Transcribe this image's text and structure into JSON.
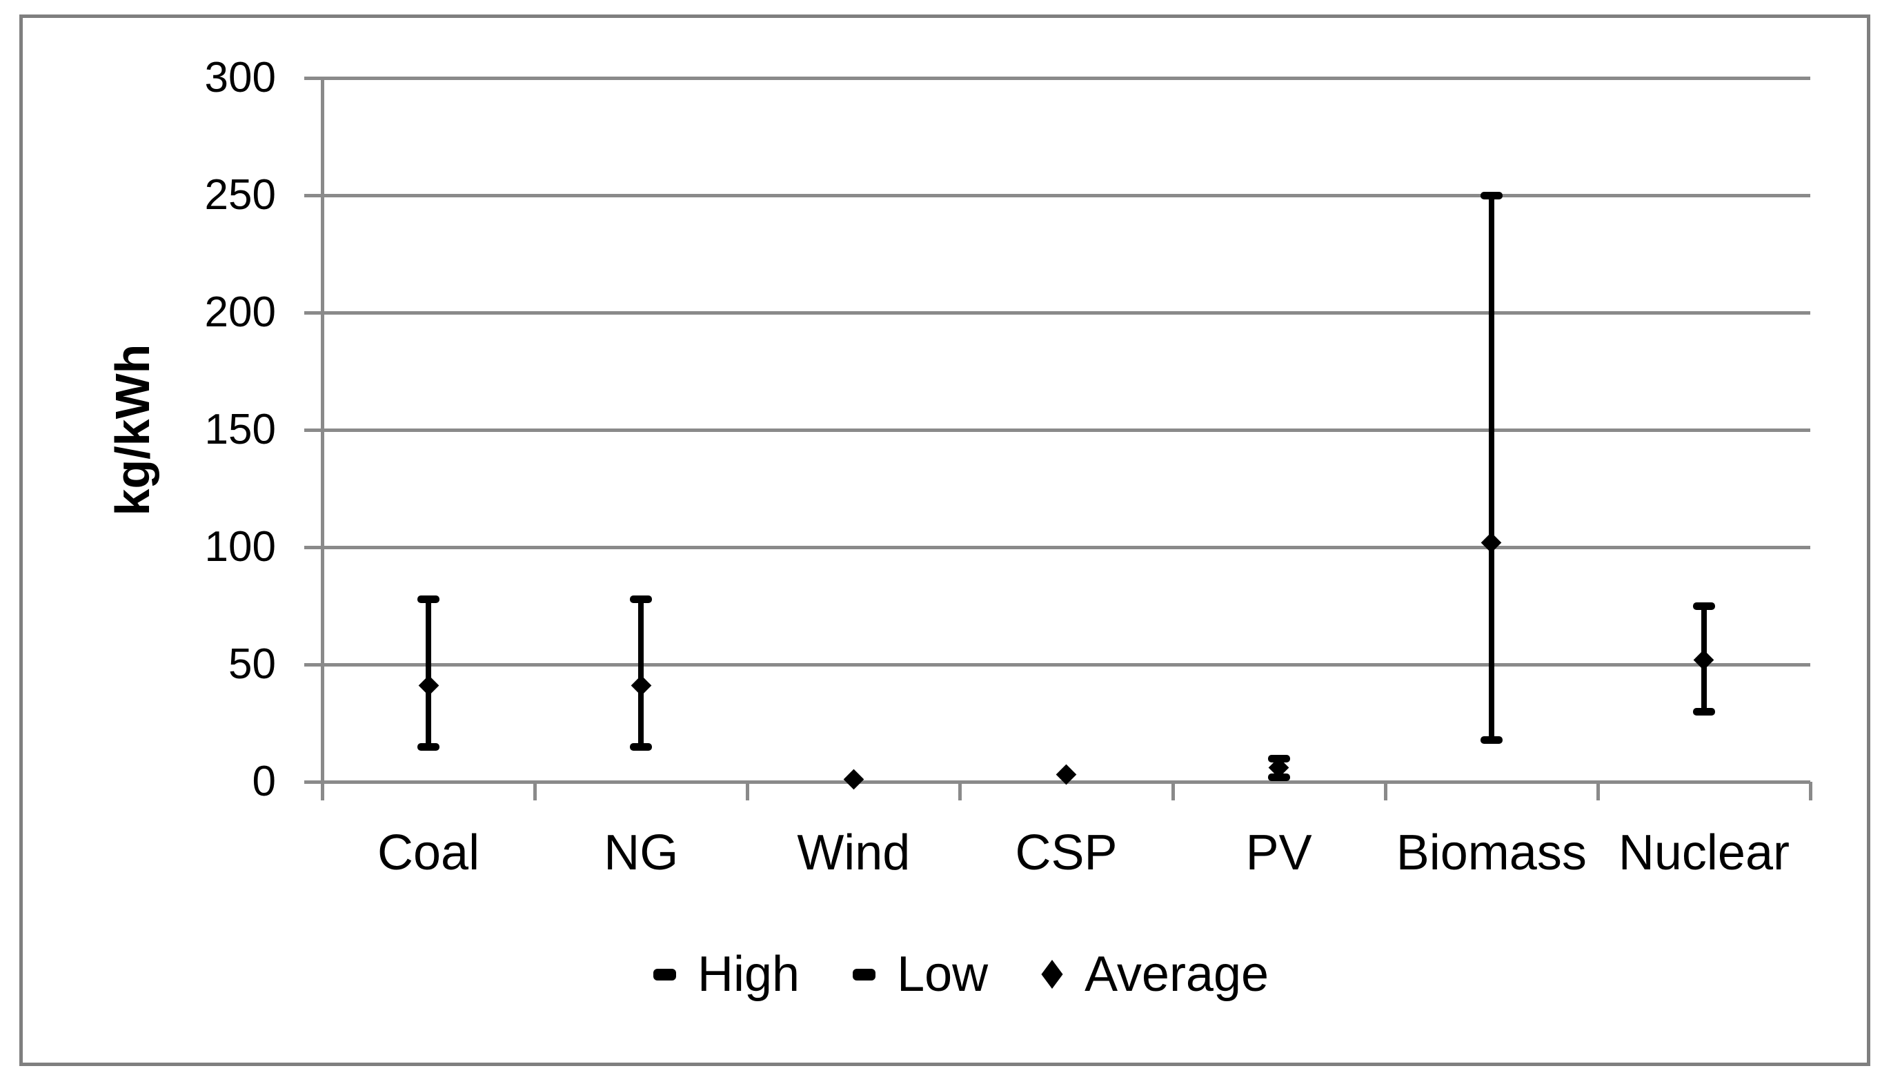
{
  "chart_data": {
    "type": "scatter",
    "subtype": "high-low-average-range",
    "title": "",
    "xlabel": "",
    "ylabel": "kg/kWh",
    "categories": [
      "Coal",
      "NG",
      "Wind",
      "CSP",
      "PV",
      "Biomass",
      "Nuclear"
    ],
    "series": [
      {
        "name": "High",
        "values": [
          78,
          78,
          null,
          null,
          10,
          250,
          75
        ]
      },
      {
        "name": "Low",
        "values": [
          15,
          15,
          null,
          null,
          2,
          18,
          30
        ]
      },
      {
        "name": "Average",
        "values": [
          41,
          41,
          1,
          3,
          6,
          102,
          52
        ]
      }
    ],
    "ylim": [
      0,
      300
    ],
    "ytick_step": 50,
    "yticks": [
      "0",
      "50",
      "100",
      "150",
      "200",
      "250",
      "300"
    ],
    "grid": true,
    "legend_position": "bottom",
    "legend_labels": [
      "High",
      "Low",
      "Average"
    ]
  },
  "colors": {
    "marker": "#000000",
    "axis": "#8a8a8a",
    "gridline": "#8a8a8a",
    "page_border": "#7f7f7f",
    "text": "#000000",
    "background": "#ffffff"
  }
}
